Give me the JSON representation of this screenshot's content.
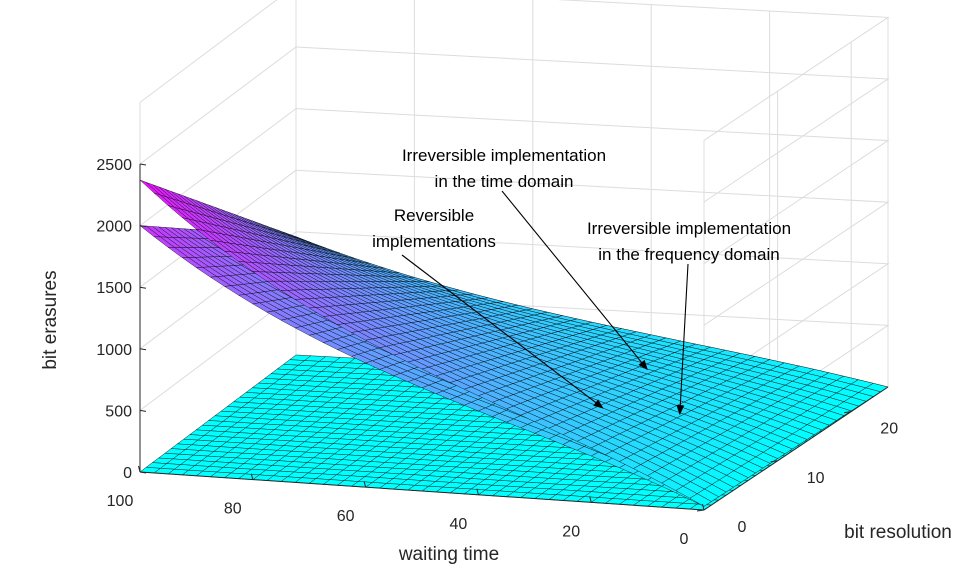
{
  "chart_data": {
    "type": "surface",
    "title": "",
    "xlabel": "waiting time",
    "ylabel": "bit resolution",
    "zlabel": "bit erasures",
    "xlim": [
      0,
      100
    ],
    "ylim": [
      0,
      25
    ],
    "zlim": [
      0,
      2500
    ],
    "x_ticks": [
      0,
      20,
      40,
      60,
      80,
      100
    ],
    "y_ticks": [
      0,
      10,
      20
    ],
    "z_ticks": [
      0,
      500,
      1000,
      1500,
      2000,
      2500
    ],
    "grid": true,
    "colormap": "cool",
    "surfaces": [
      {
        "id": "reversible",
        "corners": {
          "w100_b0": 0,
          "w0_b0": 0,
          "w100_b25": 0,
          "w0_b25": 0
        }
      },
      {
        "id": "irreversible-time",
        "corners": {
          "w100_b0": 2000,
          "w0_b0": 30,
          "w100_b25": 960,
          "w0_b25": 0
        }
      },
      {
        "id": "irreversible-frequency",
        "corners": {
          "w100_b0": 2370,
          "w0_b0": 30,
          "w100_b25": 960,
          "w0_b25": 0
        }
      }
    ],
    "annotations": [
      {
        "id": "reversible",
        "lines": [
          "Reversible",
          "implementations"
        ],
        "target": {
          "w": 40,
          "b": 18,
          "z": 0
        }
      },
      {
        "id": "irr-time",
        "lines": [
          "Irreversible implementation",
          "in the time domain"
        ],
        "target": {
          "w": 30,
          "b": 16,
          "z": 420
        }
      },
      {
        "id": "irr-freq",
        "lines": [
          "Irreversible implementation",
          "in the frequency domain"
        ],
        "target": {
          "w": 17,
          "b": 10,
          "z": 330
        }
      }
    ]
  }
}
